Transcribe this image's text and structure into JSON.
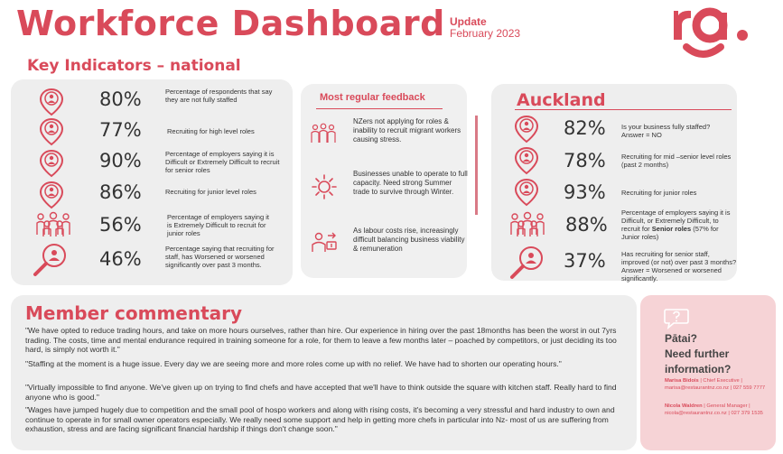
{
  "header": {
    "title": "Workforce Dashboard",
    "update_label": "Update",
    "update_date": "February 2023",
    "logo_text": "ra."
  },
  "key_indicators": {
    "title": "Key Indicators – national",
    "items": [
      {
        "value": "80%",
        "text": "Percentage of respondents that say they are not fully staffed",
        "icon": "location-pin-person-icon"
      },
      {
        "value": "77%",
        "text": "Recruiting for high level roles",
        "icon": "location-pin-person-icon"
      },
      {
        "value": "90%",
        "text": "Percentage of employers saying it is Difficult or  Extremely Difficult to recruit for senior roles",
        "icon": "location-pin-person-icon"
      },
      {
        "value": "86%",
        "text": "Recruiting for junior level roles",
        "icon": "location-pin-person-icon"
      },
      {
        "value": "56%",
        "text": "Percentage of employers saying it is Extremely Difficult to recruit for junior roles",
        "icon": "group-people-icon"
      },
      {
        "value": "46%",
        "text": "Percentage saying that recruiting for staff, has Worsened or worsened significantly over past 3 months.",
        "icon": "magnifier-person-icon"
      }
    ]
  },
  "feedback": {
    "title": "Most regular feedback",
    "items": [
      {
        "text": "NZers not applying for roles & inability to recruit migrant workers causing stress.",
        "icon": "team-icon"
      },
      {
        "text": "Businesses unable to operate to full capacity. Need strong Summer trade to survive through Winter.",
        "icon": "sun-icon"
      },
      {
        "text": "As labour costs rise, increasingly difficult balancing business viability & remuneration",
        "icon": "worker-cost-icon"
      }
    ]
  },
  "auckland": {
    "title": "Auckland",
    "items": [
      {
        "value": "82%",
        "line1": "Is your business fully staffed?",
        "line2": "Answer = NO",
        "icon": "location-pin-person-icon"
      },
      {
        "value": "78%",
        "line1": "Recruiting for mid –senior level roles",
        "line2": "(past 2 months)",
        "icon": "location-pin-person-icon"
      },
      {
        "value": "93%",
        "line1": "Recruiting for junior roles",
        "line2": "",
        "icon": "location-pin-person-icon"
      },
      {
        "value": "88%",
        "line1": "Percentage of employers saying it is Difficult, or Extremely Difficult, to recruit for",
        "bold": "Senior roles",
        "line2": " (57% for Junior roles)",
        "icon": "group-people-icon"
      },
      {
        "value": "37%",
        "line1": "Has recruiting for senior staff, improved (or not) over past 3 months? Answer = Worsened or worsened significantly.",
        "line2": "",
        "icon": "magnifier-person-icon"
      }
    ]
  },
  "commentary": {
    "title": "Member commentary",
    "quotes": [
      "\"We have opted to reduce trading hours, and take on more hours ourselves, rather than hire. Our experience in hiring over the past 18months has been the worst in out 7yrs trading. The costs, time and mental endurance required in training someone for a role, for them to leave a few months later – poached by competitors, or just deciding its too hard, is simply not worth it.\"",
      "\"Staffing at the moment is a huge issue. Every day we are seeing more and more roles come up with no relief. We have had to shorten our operating hours.\"",
      "\"Virtually impossible to find anyone. We've given up on trying to find chefs and have accepted that we'll have to think outside the square with kitchen staff. Really hard to find anyone who is good.\"",
      "\"Wages have jumped hugely due to competition and the small pool of hospo workers and along with rising costs, it's becoming a very stressful and hard industry to own and continue to operate in for small owner operators especially. We really need some support and help in getting more chefs in particular into Nz- most of us are suffering from exhaustion, stress and are facing significant financial hardship if things don't change soon.\""
    ]
  },
  "contact": {
    "line1": "Pātai?",
    "line2": "Need further",
    "line3": "information?",
    "person1_name": "Marisa Bidois",
    "person1_detail": " | Chief Executive | marisa@restaurantnz.co.nz | 027 559 7777",
    "person2_name": "Nicola Waldren",
    "person2_detail": " | General Manager | nicola@restaurantnz.co.nz | 027 379 1535"
  },
  "colors": {
    "accent": "#d94a5a",
    "panel": "#eeeeee",
    "pink_panel": "#f6d3d6"
  }
}
